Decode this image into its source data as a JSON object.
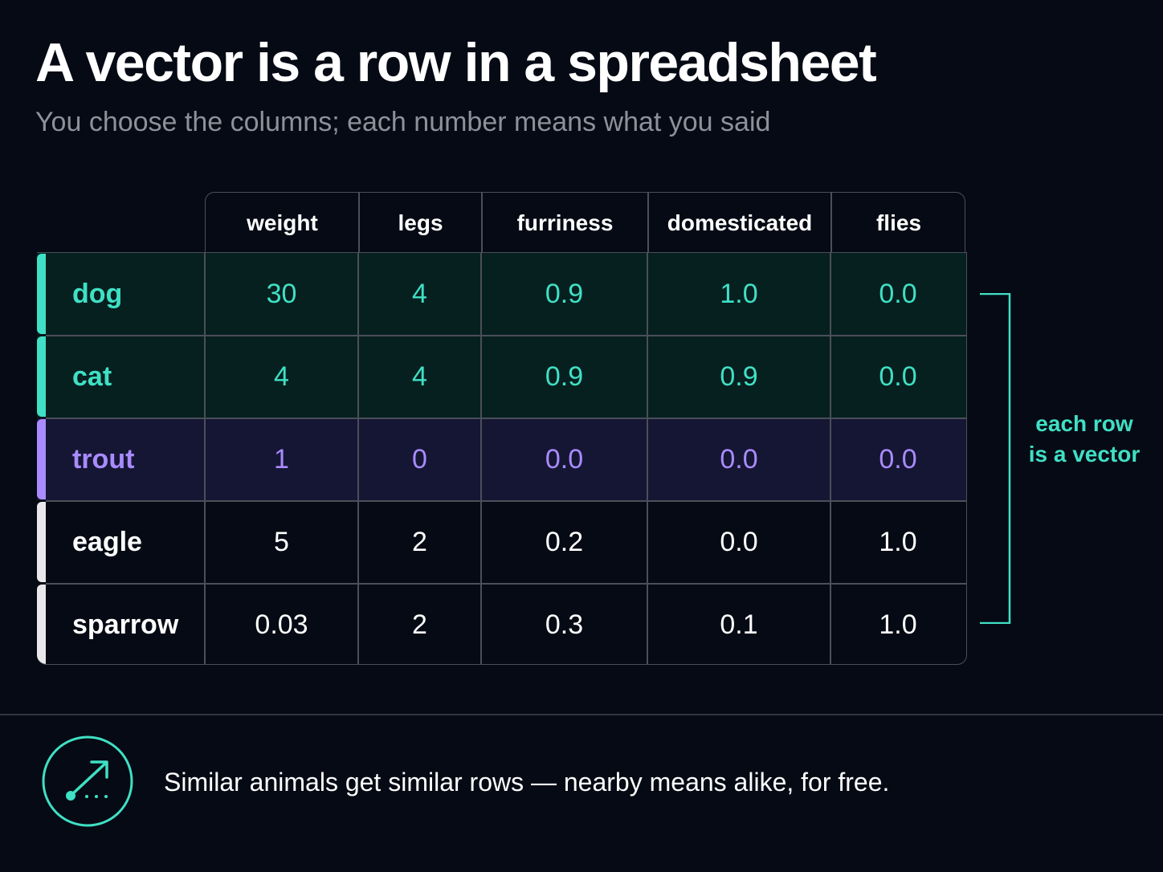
{
  "title": "A vector is a row in a spreadsheet",
  "subtitle": "You choose the columns; each number means what you said",
  "table": {
    "columns": [
      "weight",
      "legs",
      "furriness",
      "domesticated",
      "flies"
    ],
    "rows": [
      {
        "name": "dog",
        "values": [
          "30",
          "4",
          "0.9",
          "1.0",
          "0.0"
        ],
        "highlight": "teal"
      },
      {
        "name": "cat",
        "values": [
          "4",
          "4",
          "0.9",
          "0.9",
          "0.0"
        ],
        "highlight": "teal"
      },
      {
        "name": "trout",
        "values": [
          "1",
          "0",
          "0.0",
          "0.0",
          "0.0"
        ],
        "highlight": "purple"
      },
      {
        "name": "eagle",
        "values": [
          "5",
          "2",
          "0.2",
          "0.0",
          "1.0"
        ],
        "highlight": "plain"
      },
      {
        "name": "sparrow",
        "values": [
          "0.03",
          "2",
          "0.3",
          "0.1",
          "1.0"
        ],
        "highlight": "plain"
      }
    ]
  },
  "bracket_label": {
    "line1": "each row",
    "line2": "is a vector"
  },
  "footer": {
    "icon": "trend-arrow-icon",
    "text": "Similar animals get similar rows — nearby means alike, for free."
  },
  "colors": {
    "background": "#060a14",
    "teal": "#3fe0c5",
    "purple": "#a98bff",
    "grid": "#4a4f5a",
    "subtitle": "#8c919a"
  }
}
